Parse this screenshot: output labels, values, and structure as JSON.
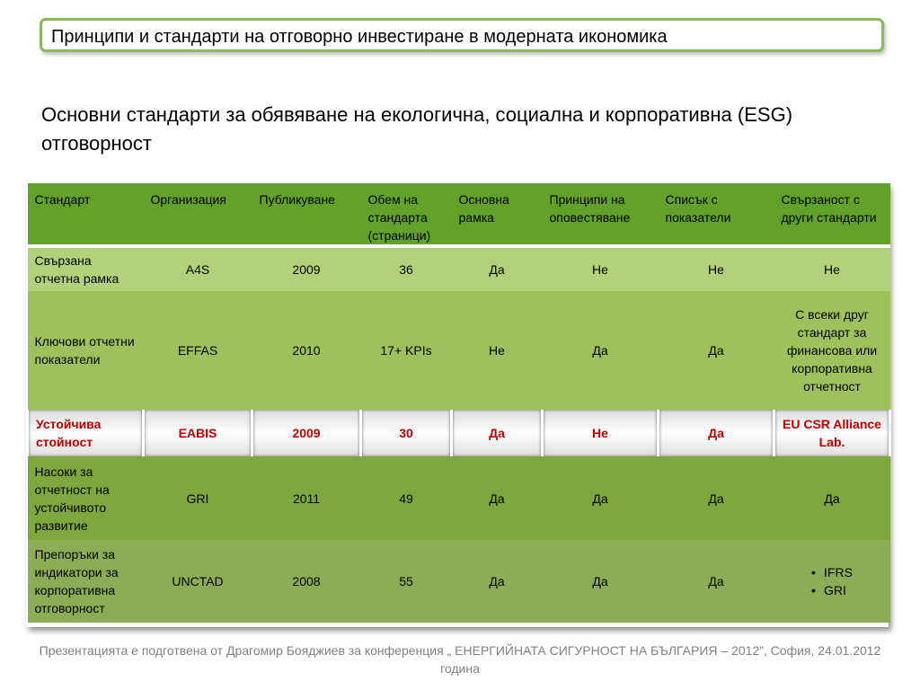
{
  "header": {
    "title": "Принципи и стандарти на отговорно инвестиране в модерната икономика"
  },
  "subtitle": "Основни стандарти за обявяване на екологична, социална и корпоративна (ESG) отговорност",
  "table": {
    "headers": [
      "Стандарт",
      "Организация",
      "Публикуване",
      "Обем  на стандарта (страници)",
      "Основна рамка",
      "Принципи на оповестяване",
      "Списък с показатели",
      "Свързаност с други стандарти"
    ],
    "rows": [
      [
        "Свързана отчетна рамка",
        "A4S",
        "2009",
        "36",
        "Да",
        "Не",
        "Не",
        "Не"
      ],
      [
        "Ключови отчетни показатели",
        "EFFAS",
        "2010",
        "17+ KPIs",
        "Не",
        "Да",
        "Да",
        "С всеки друг стандарт за финансова или корпоративна отчетност"
      ],
      [
        "Устойчива стойност",
        "EABIS",
        "2009",
        "30",
        "Да",
        "Не",
        "Да",
        "EU CSR Alliance Lab."
      ],
      [
        "Насоки за отчетност на устойчивото развитие",
        "GRI",
        "2011",
        "49",
        "Да",
        "Да",
        "Да",
        "Да"
      ],
      [
        "Препоръки за индикатори за корпоративна отговорност",
        "UNCTAD",
        "2008",
        "55",
        "Да",
        "Да",
        "Да",
        ""
      ]
    ],
    "last_row_bullets": [
      "IFRS",
      "GRI"
    ]
  },
  "footer": "Презентацията е подготвена от Драгомир Бояджиев за конференция „ ЕНЕРГИЙНАТА СИГУРНОСТ НА БЪЛГАРИЯ – 2012”, София, 24.01.2012 година"
}
